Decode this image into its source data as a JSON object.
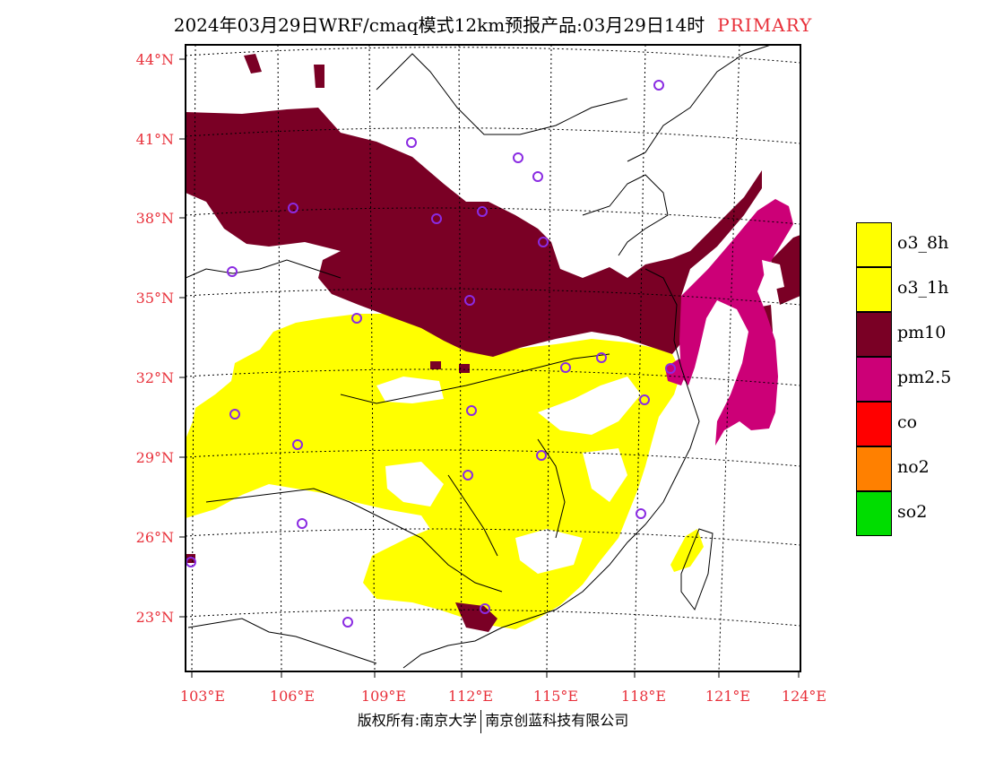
{
  "title": {
    "main": "2024年03月29日WRF/cmaq模式12km预报产品:03月29日14时",
    "tag": "PRIMARY"
  },
  "axes": {
    "lat_labels": [
      "44°N",
      "41°N",
      "38°N",
      "35°N",
      "32°N",
      "29°N",
      "26°N",
      "23°N"
    ],
    "lon_labels": [
      "103°E",
      "106°E",
      "109°E",
      "112°E",
      "115°E",
      "118°E",
      "121°E",
      "124°E"
    ]
  },
  "legend": [
    {
      "label": "o3_8h",
      "color": "#ffff00"
    },
    {
      "label": "o3_1h",
      "color": "#ffff00"
    },
    {
      "label": "pm10",
      "color": "#7a0025"
    },
    {
      "label": "pm2.5",
      "color": "#cc0077"
    },
    {
      "label": "co",
      "color": "#ff0000"
    },
    {
      "label": "no2",
      "color": "#ff8000"
    },
    {
      "label": "so2",
      "color": "#00dd00"
    }
  ],
  "footer": {
    "left": "版权所有:南京大学",
    "right": "南京创蓝科技有限公司"
  }
}
